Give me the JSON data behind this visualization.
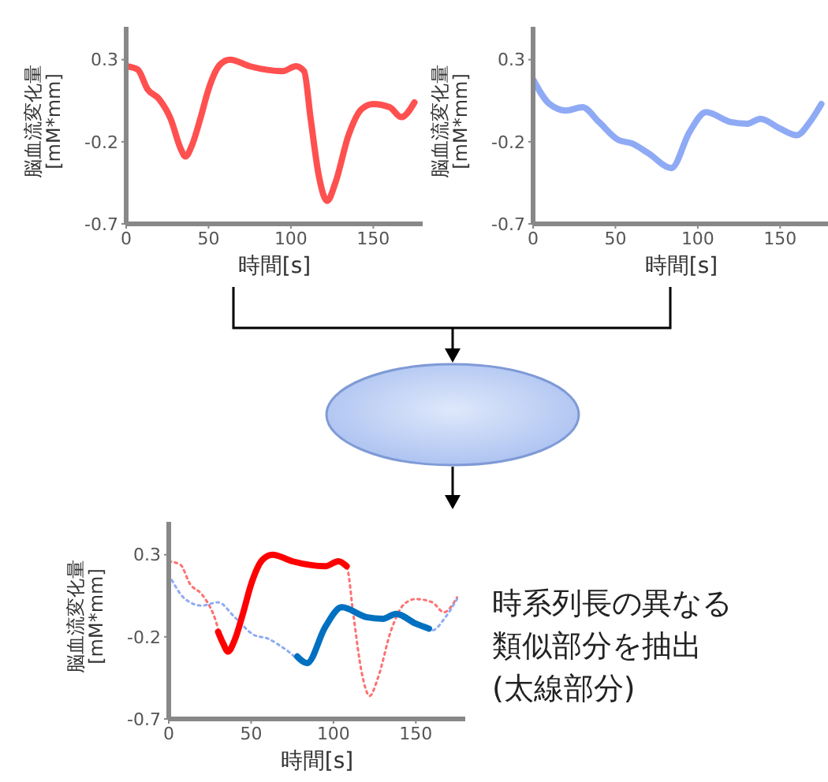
{
  "chart_data": [
    {
      "type": "line",
      "xlabel": "時間[s]",
      "ylabel": "脳血流変化量\n[mM*mm]",
      "xlim": [
        0,
        180
      ],
      "ylim": [
        -0.7,
        0.5
      ],
      "xticks": [
        0,
        50,
        100,
        150
      ],
      "yticks": [
        -0.7,
        -0.2,
        0.3
      ],
      "grid": false,
      "legend": false,
      "marker": "none",
      "series": [
        {
          "color": "#ff5050",
          "line_style": "solid",
          "x": [
            0,
            7,
            13,
            20,
            27,
            33,
            36,
            40,
            45,
            50,
            57,
            63,
            75,
            95,
            103,
            108,
            112,
            117,
            122,
            127,
            135,
            143,
            150,
            160,
            167,
            175
          ],
          "values": [
            0.26,
            0.24,
            0.12,
            0.06,
            -0.06,
            -0.24,
            -0.29,
            -0.22,
            -0.06,
            0.12,
            0.27,
            0.3,
            0.26,
            0.23,
            0.26,
            0.23,
            -0.06,
            -0.41,
            -0.56,
            -0.45,
            -0.16,
            0.0,
            0.03,
            0.01,
            -0.05,
            0.04
          ]
        }
      ]
    },
    {
      "type": "line",
      "xlabel": "時間[s]",
      "ylabel": "脳血流変化量\n[mM*mm]",
      "xlim": [
        0,
        180
      ],
      "ylim": [
        -0.7,
        0.5
      ],
      "xticks": [
        0,
        50,
        100,
        150
      ],
      "yticks": [
        -0.7,
        -0.2,
        0.3
      ],
      "grid": false,
      "legend": false,
      "marker": "none",
      "series": [
        {
          "color": "#8faaf5",
          "line_style": "solid",
          "x": [
            0,
            10,
            20,
            30,
            40,
            52,
            60,
            70,
            84,
            95,
            105,
            120,
            130,
            138,
            150,
            160,
            168,
            175
          ],
          "values": [
            0.18,
            0.03,
            -0.01,
            0.01,
            -0.08,
            -0.19,
            -0.21,
            -0.27,
            -0.36,
            -0.14,
            -0.02,
            -0.08,
            -0.09,
            -0.06,
            -0.12,
            -0.16,
            -0.08,
            0.03
          ]
        }
      ]
    },
    {
      "type": "line",
      "xlabel": "時間[s]",
      "ylabel": "脳血流変化量\n[mM*mm]",
      "xlim": [
        0,
        180
      ],
      "ylim": [
        -0.7,
        0.5
      ],
      "xticks": [
        0,
        50,
        100,
        150
      ],
      "yticks": [
        -0.7,
        -0.2,
        0.3
      ],
      "grid": false,
      "legend": false,
      "marker": "none",
      "annotations": [
        "時系列長の異なる",
        "類似部分を抽出",
        "(太線部分)"
      ],
      "series": [
        {
          "color": "#ff7070",
          "line_style": "dotted",
          "x": [
            0,
            7,
            13,
            20,
            27,
            33,
            36,
            40,
            45,
            50,
            57,
            63,
            75,
            95,
            103,
            108,
            112,
            117,
            122,
            127,
            135,
            143,
            150,
            160,
            167,
            175
          ],
          "values": [
            0.26,
            0.24,
            0.12,
            0.06,
            -0.06,
            -0.24,
            -0.29,
            -0.22,
            -0.06,
            0.12,
            0.27,
            0.3,
            0.26,
            0.23,
            0.26,
            0.23,
            -0.06,
            -0.41,
            -0.56,
            -0.45,
            -0.16,
            0.0,
            0.03,
            0.01,
            -0.05,
            0.04
          ]
        },
        {
          "color": "#8faaf5",
          "line_style": "dotted",
          "x": [
            0,
            10,
            20,
            30,
            40,
            52,
            60,
            70,
            84,
            95,
            105,
            120,
            130,
            138,
            150,
            160,
            168,
            175
          ],
          "values": [
            0.18,
            0.03,
            -0.01,
            0.01,
            -0.08,
            -0.19,
            -0.21,
            -0.27,
            -0.36,
            -0.14,
            -0.02,
            -0.08,
            -0.09,
            -0.06,
            -0.12,
            -0.16,
            -0.08,
            0.03
          ]
        },
        {
          "color": "#ff0000",
          "line_style": "solid",
          "x": [
            30,
            33,
            36,
            40,
            45,
            50,
            57,
            63,
            75,
            95,
            103,
            108
          ],
          "values": [
            -0.17,
            -0.24,
            -0.29,
            -0.22,
            -0.06,
            0.12,
            0.27,
            0.3,
            0.26,
            0.23,
            0.26,
            0.23
          ]
        },
        {
          "color": "#0070c0",
          "line_style": "solid",
          "x": [
            78,
            84,
            95,
            105,
            120,
            130,
            138,
            150,
            158
          ],
          "values": [
            -0.32,
            -0.36,
            -0.14,
            -0.02,
            -0.08,
            -0.09,
            -0.06,
            -0.12,
            -0.15
          ]
        }
      ]
    }
  ]
}
